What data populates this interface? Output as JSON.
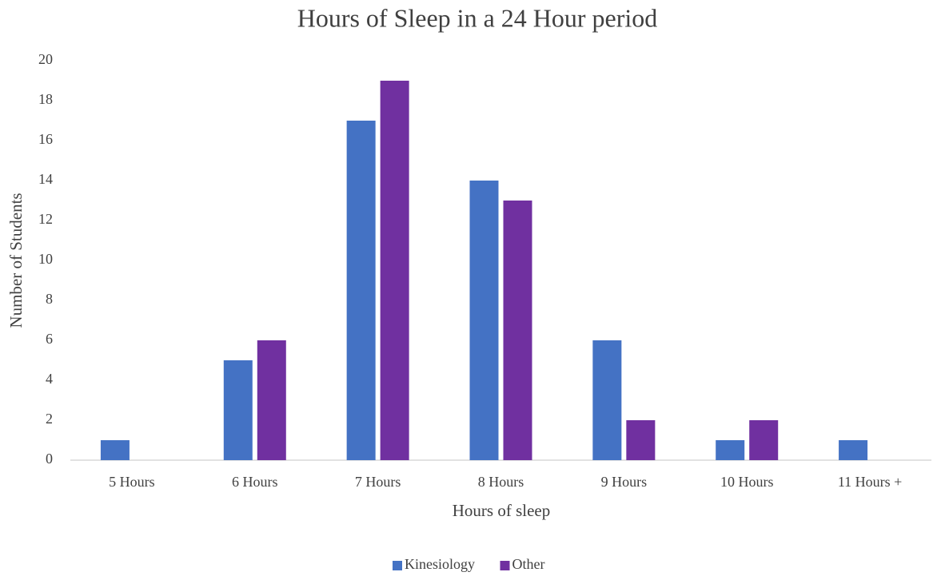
{
  "chart_data": {
    "type": "bar",
    "title": "Hours of Sleep in a 24 Hour period",
    "x_label": "Hours of sleep",
    "y_label": "Number of Students",
    "categories": [
      "5 Hours",
      "6 Hours",
      "7 Hours",
      "8 Hours",
      "9 Hours",
      "10 Hours",
      "11 Hours +"
    ],
    "series": [
      {
        "name": "Kinesiology",
        "color": "#4472c4",
        "values": [
          1,
          5,
          17,
          14,
          6,
          1,
          1
        ]
      },
      {
        "name": "Other",
        "color": "#7030a0",
        "values": [
          0,
          6,
          19,
          13,
          2,
          2,
          0
        ]
      }
    ],
    "ylim": [
      0,
      20
    ],
    "yticks": [
      0,
      2,
      4,
      6,
      8,
      10,
      12,
      14,
      16,
      18,
      20
    ],
    "grid": false,
    "legend": "bottom"
  }
}
